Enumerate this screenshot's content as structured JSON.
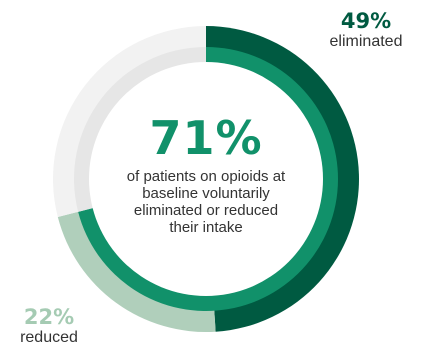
{
  "chart_data": {
    "type": "pie",
    "headline_value": "71%",
    "headline_text": "of patients on opioids at baseline voluntarily eliminated or reduced their intake",
    "outer_ring": [
      {
        "name": "eliminated",
        "value": 49,
        "label_value": "49%",
        "color": "#005a41"
      },
      {
        "name": "reduced",
        "value": 22,
        "label_value": "22%",
        "color": "#b0cfbb"
      },
      {
        "name": "remainder",
        "value": 29,
        "color": "#f2f2f2"
      }
    ],
    "inner_ring": [
      {
        "name": "eliminated or reduced",
        "value": 71,
        "color": "#11916a"
      },
      {
        "name": "remainder",
        "value": 29,
        "color": "#e6e6e6"
      }
    ]
  },
  "colors": {
    "eliminated_text": "#005a41",
    "reduced_text": "#a5cbb3",
    "headline_text": "#11916a",
    "body_text": "#333333"
  }
}
